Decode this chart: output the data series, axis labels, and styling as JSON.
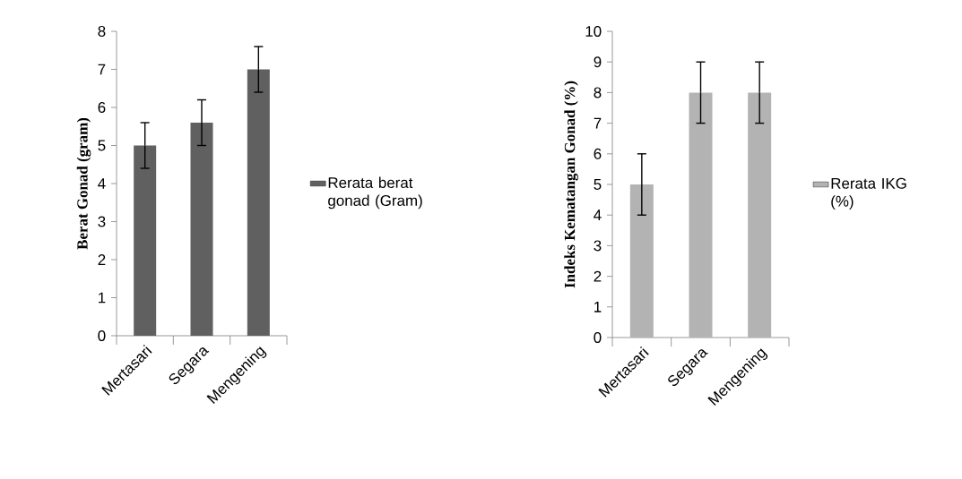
{
  "chart_data": [
    {
      "type": "bar",
      "categories": [
        "Mertasari",
        "Segara",
        "Mengening"
      ],
      "ylabel": "Berat Gonad (gram)",
      "ylim": [
        0,
        8
      ],
      "yticks": [
        0,
        1,
        2,
        3,
        4,
        5,
        6,
        7,
        8
      ],
      "legend": "right",
      "series": [
        {
          "name": "Rerata berat gonad (Gram)",
          "color": "#606060",
          "values": [
            5,
            5.6,
            7
          ],
          "errors": [
            0.6,
            0.6,
            0.6
          ]
        }
      ]
    },
    {
      "type": "bar",
      "categories": [
        "Mertasari",
        "Segara",
        "Mengening"
      ],
      "ylabel": "Indeks Kematangan Gonad (%)",
      "ylim": [
        0,
        10
      ],
      "yticks": [
        0,
        1,
        2,
        3,
        4,
        5,
        6,
        7,
        8,
        9,
        10
      ],
      "legend": "right",
      "series": [
        {
          "name": "Rerata IKG (%)",
          "color": "#b3b3b3",
          "values": [
            5,
            8,
            8
          ],
          "errors": [
            1,
            1,
            1
          ]
        }
      ]
    }
  ]
}
